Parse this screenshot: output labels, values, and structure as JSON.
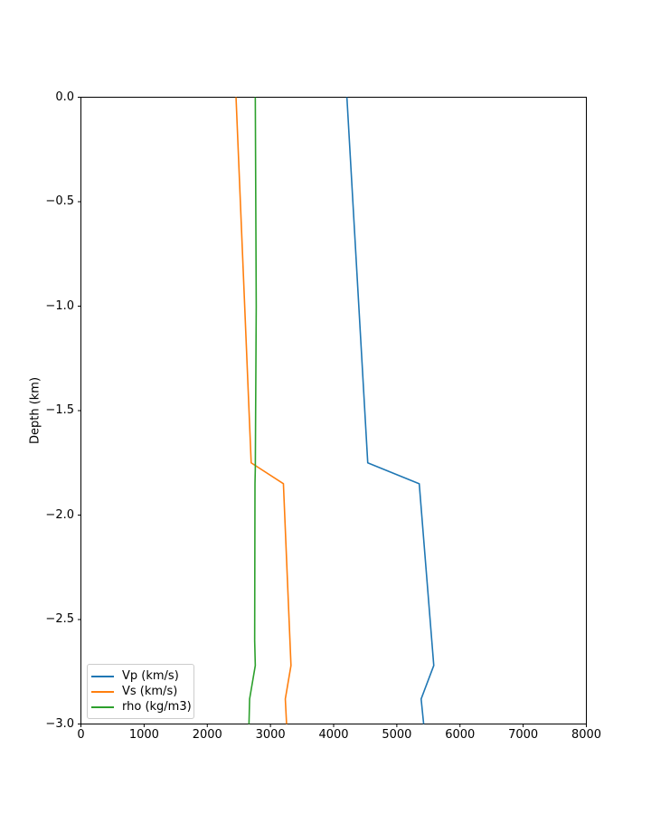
{
  "chart_data": {
    "type": "line",
    "title": "",
    "xlabel": "",
    "ylabel": "Depth (km)",
    "xlim": [
      0,
      8000
    ],
    "ylim": [
      -3.0,
      0.0
    ],
    "xticks": [
      0,
      1000,
      2000,
      3000,
      4000,
      5000,
      6000,
      7000,
      8000
    ],
    "xtick_labels": [
      "0",
      "1000",
      "2000",
      "3000",
      "4000",
      "5000",
      "6000",
      "7000",
      "8000"
    ],
    "yticks": [
      0.0,
      -0.5,
      -1.0,
      -1.5,
      -2.0,
      -2.5,
      -3.0
    ],
    "ytick_labels": [
      "0.0",
      "−0.5",
      "−1.0",
      "−1.5",
      "−2.0",
      "−2.5",
      "−3.0"
    ],
    "grid": false,
    "legend_position": "lower left",
    "axis_color": "#000000",
    "series": [
      {
        "key": "vp",
        "name": "Vp (km/s)",
        "color": "#1f77b4",
        "points_value_depth": [
          [
            4210,
            0.0
          ],
          [
            4540,
            -1.75
          ],
          [
            5355,
            -1.85
          ],
          [
            5585,
            -2.72
          ],
          [
            5385,
            -2.88
          ],
          [
            5425,
            -3.0
          ]
        ]
      },
      {
        "key": "vs",
        "name": "Vs (km/s)",
        "color": "#ff7f0e",
        "points_value_depth": [
          [
            2455,
            0.0
          ],
          [
            2695,
            -1.75
          ],
          [
            3205,
            -1.85
          ],
          [
            3325,
            -2.72
          ],
          [
            3235,
            -2.88
          ],
          [
            3255,
            -3.0
          ]
        ]
      },
      {
        "key": "rho",
        "name": "rho (kg/m3)",
        "color": "#2ca02c",
        "points_value_depth": [
          [
            2760,
            0.0
          ],
          [
            2775,
            -1.0
          ],
          [
            2760,
            -1.78
          ],
          [
            2755,
            -1.85
          ],
          [
            2750,
            -2.6
          ],
          [
            2760,
            -2.72
          ],
          [
            2670,
            -2.88
          ],
          [
            2660,
            -3.0
          ]
        ]
      }
    ]
  }
}
